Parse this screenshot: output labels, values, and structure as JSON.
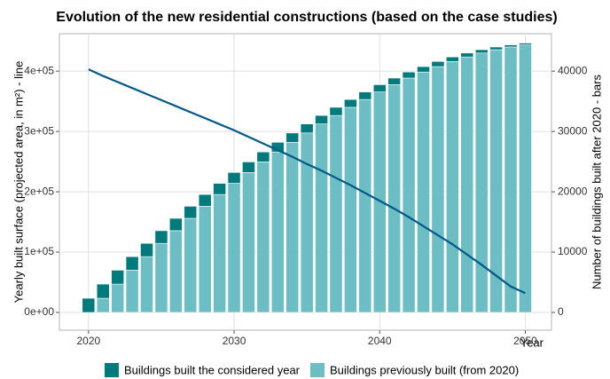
{
  "chart_data": {
    "type": "bar_line",
    "title": "Evolution of the new residential constructions (based on the case studies)",
    "x_label": "Year",
    "y_label": "Yearly built surface (projected area, in m²) - line",
    "y2_label": "Number of buildings built after 2020 - bars",
    "x": [
      2020,
      2021,
      2022,
      2023,
      2024,
      2025,
      2026,
      2027,
      2028,
      2029,
      2030,
      2031,
      2032,
      2033,
      2034,
      2035,
      2036,
      2037,
      2038,
      2039,
      2040,
      2041,
      2042,
      2043,
      2044,
      2045,
      2046,
      2047,
      2048,
      2049,
      2050
    ],
    "xlim": [
      2018,
      2051.8
    ],
    "xticks": [
      2020,
      2030,
      2040,
      2050
    ],
    "ylim": [
      -29400,
      462000
    ],
    "yticks": [
      {
        "value": 0,
        "label": "0e+00"
      },
      {
        "value": 100000,
        "label": "1e+05"
      },
      {
        "value": 200000,
        "label": "2e+05"
      },
      {
        "value": 300000,
        "label": "3e+05"
      },
      {
        "value": 400000,
        "label": "4e+05"
      }
    ],
    "y2lim": [
      -2940,
      46200
    ],
    "y2ticks": [
      0,
      10000,
      20000,
      30000,
      40000
    ],
    "grid": true,
    "legend": "bottom",
    "series": [
      {
        "name": "Buildings built the considered year",
        "type": "bar",
        "axis": "y2",
        "color": "#007a7c",
        "values": [
          2350,
          2350,
          2300,
          2250,
          2200,
          2100,
          2050,
          2000,
          1950,
          1850,
          1800,
          1750,
          1650,
          1600,
          1550,
          1500,
          1400,
          1350,
          1300,
          1250,
          1200,
          1100,
          1000,
          900,
          850,
          750,
          650,
          550,
          450,
          350,
          300
        ]
      },
      {
        "name": "Buildings previously built (from 2020)",
        "type": "bar",
        "axis": "y2",
        "color": "#6dbdc4",
        "values": [
          0,
          2350,
          4700,
          7000,
          9250,
          11450,
          13550,
          15600,
          17600,
          19550,
          21400,
          23200,
          24950,
          26600,
          28200,
          29750,
          31250,
          32650,
          34000,
          35300,
          36550,
          37750,
          38850,
          39850,
          40750,
          41600,
          42350,
          43000,
          43550,
          44000,
          44350
        ]
      },
      {
        "type": "line",
        "axis": "y",
        "color": "#005a8a",
        "values": [
          403000,
          392000,
          382000,
          372000,
          362000,
          352000,
          342000,
          332000,
          322000,
          312000,
          302000,
          291000,
          280000,
          269000,
          258000,
          246000,
          235000,
          223000,
          211000,
          198000,
          185000,
          172000,
          158000,
          143000,
          128000,
          113000,
          96000,
          79000,
          61000,
          43000,
          32000
        ]
      }
    ]
  }
}
